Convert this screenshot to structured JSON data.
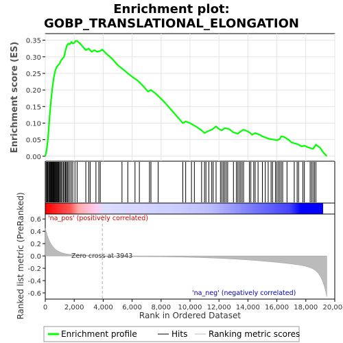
{
  "chart_data": {
    "type": "line",
    "title_line1": "Enrichment plot:",
    "title_line2": "GOBP_TRANSLATIONAL_ELONGATION",
    "es_ylabel": "Enrichment score (ES)",
    "metric_ylabel": "Ranked list metric (PreRanked)",
    "xlabel": "Rank in Ordered Dataset",
    "xlim": [
      0,
      20000
    ],
    "es_ylim": [
      -0.015,
      0.37
    ],
    "metric_ylim": [
      -0.7,
      0.68
    ],
    "x_ticks": [
      "0",
      "2,000",
      "4,000",
      "6,000",
      "8,000",
      "10,000",
      "12,000",
      "14,000",
      "16,000",
      "18,000",
      "20,000"
    ],
    "x_tick_values": [
      0,
      2000,
      4000,
      6000,
      8000,
      10000,
      12000,
      14000,
      16000,
      18000,
      20000
    ],
    "es_ticks": [
      "0.00",
      "0.05",
      "0.10",
      "0.15",
      "0.20",
      "0.25",
      "0.30",
      "0.35"
    ],
    "es_tick_values": [
      0.0,
      0.05,
      0.1,
      0.15,
      0.2,
      0.25,
      0.3,
      0.35
    ],
    "metric_ticks": [
      "0.6",
      "0.4",
      "0.2",
      "0.0",
      "-0.2",
      "-0.4",
      "-0.6"
    ],
    "metric_tick_values": [
      0.6,
      0.4,
      0.2,
      0.0,
      -0.2,
      -0.4,
      -0.6
    ],
    "annotations": {
      "pos_label": "'na_pos' (positively correlated)",
      "neg_label": "'na_neg' (negatively correlated)",
      "zero_cross": "Zero cross at 3943",
      "zero_cross_rank": 3943
    },
    "series": [
      {
        "name": "Enrichment profile",
        "color": "#00ff00",
        "x": [
          0,
          100,
          200,
          300,
          400,
          500,
          600,
          700,
          800,
          900,
          1000,
          1100,
          1200,
          1300,
          1400,
          1500,
          1600,
          1700,
          1800,
          1900,
          2000,
          2100,
          2200,
          2400,
          2600,
          2800,
          3000,
          3200,
          3400,
          3600,
          3800,
          3943,
          4200,
          4600,
          5000,
          5300,
          5700,
          6000,
          6400,
          6800,
          7100,
          7300,
          7600,
          7900,
          8300,
          8700,
          9100,
          9500,
          9700,
          10000,
          10400,
          10800,
          11000,
          11200,
          11500,
          11800,
          12000,
          12200,
          12400,
          12700,
          13000,
          13300,
          13500,
          13700,
          14000,
          14300,
          14500,
          14800,
          15000,
          15300,
          15500,
          15800,
          16000,
          16200,
          16300,
          16500,
          16800,
          17000,
          17300,
          17500,
          17700,
          17900,
          18100,
          18300,
          18500,
          18700,
          19000,
          19200,
          19450
        ],
        "values": [
          0.0,
          0.02,
          0.06,
          0.12,
          0.17,
          0.21,
          0.24,
          0.26,
          0.27,
          0.275,
          0.28,
          0.29,
          0.295,
          0.3,
          0.32,
          0.335,
          0.34,
          0.338,
          0.345,
          0.34,
          0.342,
          0.348,
          0.348,
          0.34,
          0.33,
          0.32,
          0.325,
          0.315,
          0.32,
          0.315,
          0.318,
          0.322,
          0.31,
          0.295,
          0.275,
          0.265,
          0.25,
          0.24,
          0.228,
          0.21,
          0.195,
          0.2,
          0.19,
          0.178,
          0.16,
          0.14,
          0.12,
          0.1,
          0.105,
          0.1,
          0.09,
          0.078,
          0.07,
          0.075,
          0.08,
          0.09,
          0.082,
          0.078,
          0.085,
          0.082,
          0.072,
          0.068,
          0.075,
          0.08,
          0.075,
          0.065,
          0.07,
          0.065,
          0.06,
          0.055,
          0.052,
          0.05,
          0.048,
          0.052,
          0.06,
          0.058,
          0.05,
          0.042,
          0.038,
          0.035,
          0.03,
          0.032,
          0.028,
          0.025,
          0.022,
          0.035,
          0.025,
          0.012,
          0.0
        ]
      }
    ],
    "hits_rank": [
      60,
      120,
      170,
      230,
      280,
      330,
      380,
      430,
      470,
      520,
      570,
      610,
      660,
      700,
      750,
      790,
      840,
      880,
      930,
      980,
      1050,
      1100,
      1180,
      1260,
      1330,
      1400,
      1460,
      1530,
      1600,
      1700,
      1800,
      1900,
      2050,
      2200,
      2800,
      3000,
      3100,
      3500,
      3700,
      3800,
      5300,
      5700,
      6200,
      6500,
      7200,
      7300,
      7800,
      9500,
      9700,
      10100,
      10300,
      10800,
      11000,
      11100,
      11300,
      11500,
      11600,
      11800,
      12100,
      12200,
      12300,
      12400,
      12500,
      12600,
      13000,
      13200,
      13300,
      13400,
      13500,
      13600,
      13700,
      14100,
      14200,
      14400,
      14500,
      14700,
      15000,
      15200,
      15400,
      15600,
      15700,
      15900,
      16000,
      16100,
      16200,
      16300,
      16400,
      16700,
      17200,
      17400,
      17500,
      17800,
      17900,
      18300,
      18400,
      18500,
      18600,
      18700
    ],
    "legend": [
      {
        "label": "Enrichment profile",
        "color": "#00ff00"
      },
      {
        "label": "Hits",
        "color": "#000000"
      },
      {
        "label": "Ranking metric scores",
        "color": "#bbbbbb"
      }
    ]
  }
}
